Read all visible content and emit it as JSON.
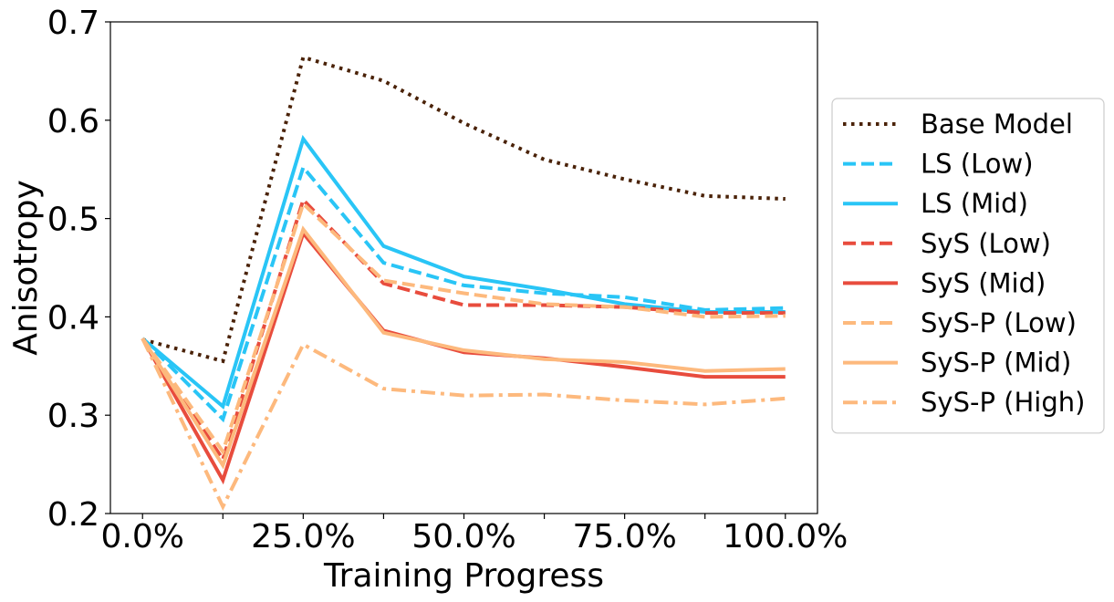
{
  "chart_data": {
    "type": "line",
    "xlabel": "Training Progress",
    "ylabel": "Anisotropy",
    "xlim": [
      -5,
      105
    ],
    "ylim": [
      0.2,
      0.7
    ],
    "x": [
      0,
      12.5,
      25,
      37.5,
      50,
      62.5,
      75,
      87.5,
      100
    ],
    "xticks": [
      0,
      12.5,
      25,
      37.5,
      50,
      62.5,
      75,
      87.5,
      100
    ],
    "xtick_labels": [
      "0.0%",
      "",
      "25.0%",
      "",
      "50.0%",
      "",
      "75.0%",
      "",
      "100.0%"
    ],
    "yticks": [
      0.2,
      0.3,
      0.4,
      0.5,
      0.6,
      0.7
    ],
    "ytick_labels": [
      "0.2",
      "0.3",
      "0.4",
      "0.5",
      "0.6",
      "0.7"
    ],
    "legend_position": "right-outside",
    "series": [
      {
        "name": "Base Model",
        "color": "#4a2208",
        "dash": "dotted",
        "values": [
          0.377,
          0.355,
          0.664,
          0.64,
          0.597,
          0.56,
          0.54,
          0.523,
          0.52
        ]
      },
      {
        "name": "LS (Low)",
        "color": "#29c5f6",
        "dash": "dashed",
        "values": [
          0.378,
          0.296,
          0.552,
          0.455,
          0.432,
          0.424,
          0.42,
          0.407,
          0.409
        ]
      },
      {
        "name": "LS (Mid)",
        "color": "#29c5f6",
        "dash": "solid",
        "values": [
          0.378,
          0.309,
          0.581,
          0.472,
          0.441,
          0.428,
          0.413,
          0.405,
          0.405
        ]
      },
      {
        "name": "SyS (Low)",
        "color": "#e84c3d",
        "dash": "dashed",
        "values": [
          0.378,
          0.255,
          0.519,
          0.434,
          0.412,
          0.412,
          0.41,
          0.404,
          0.404
        ]
      },
      {
        "name": "SyS (Mid)",
        "color": "#e84c3d",
        "dash": "solid",
        "values": [
          0.378,
          0.234,
          0.485,
          0.386,
          0.364,
          0.358,
          0.349,
          0.339,
          0.339
        ]
      },
      {
        "name": "SyS-P (Low)",
        "color": "#fdb97d",
        "dash": "dashed",
        "values": [
          0.378,
          0.263,
          0.515,
          0.437,
          0.424,
          0.413,
          0.41,
          0.4,
          0.401
        ]
      },
      {
        "name": "SyS-P (Mid)",
        "color": "#fdb97d",
        "dash": "solid",
        "values": [
          0.378,
          0.249,
          0.489,
          0.384,
          0.366,
          0.357,
          0.354,
          0.345,
          0.347
        ]
      },
      {
        "name": "SyS-P (High)",
        "color": "#fdb97d",
        "dash": "dashdot",
        "values": [
          0.378,
          0.207,
          0.372,
          0.327,
          0.32,
          0.321,
          0.315,
          0.311,
          0.317
        ]
      }
    ]
  }
}
